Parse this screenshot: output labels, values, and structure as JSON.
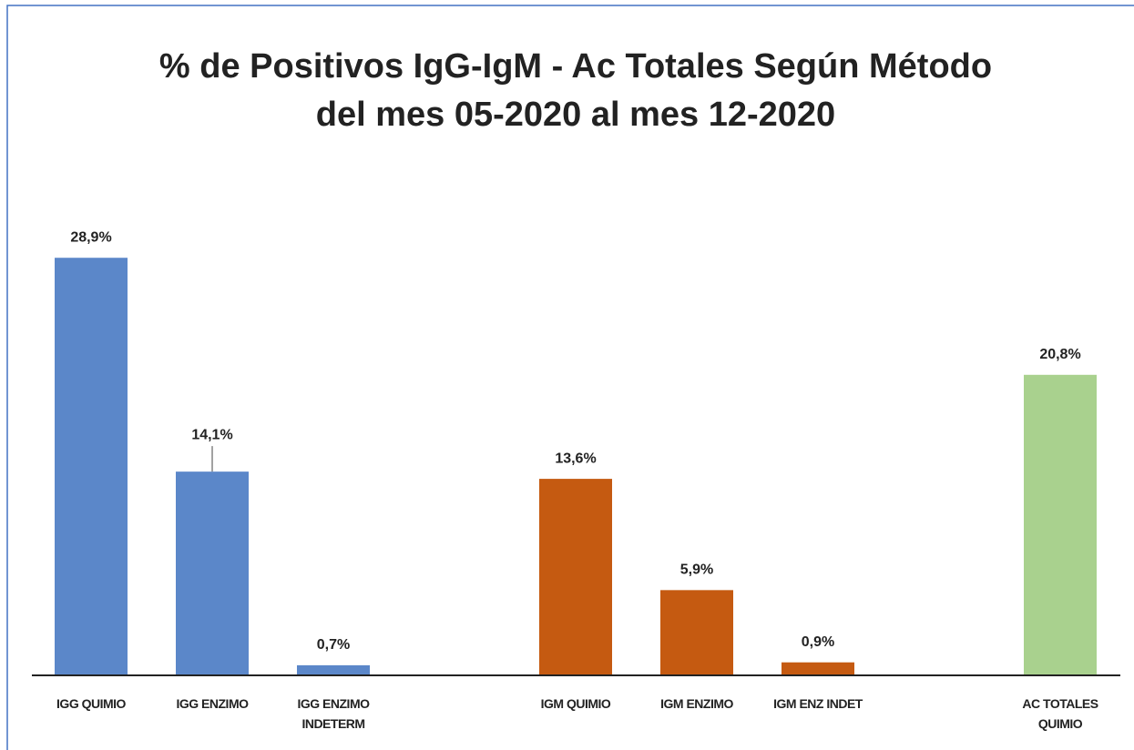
{
  "chart_data": {
    "type": "bar",
    "title": "% de Positivos IgG-IgM - Ac Totales Según Método",
    "subtitle": "del mes 05-2020 al mes 12-2020",
    "categories": [
      "IGG QUIMIO",
      "IGG ENZIMO",
      "IGG ENZIMO INDETERM",
      null,
      "IGM QUIMIO",
      "IGM ENZIMO",
      "IGM ENZ INDET",
      null,
      "AC TOTALES QUIMIO"
    ],
    "values": [
      28.9,
      14.1,
      0.7,
      null,
      13.6,
      5.9,
      0.9,
      null,
      20.8
    ],
    "value_labels": [
      "28,9%",
      "14,1%",
      "0,7%",
      null,
      "13,6%",
      "5,9%",
      "0,9%",
      null,
      "20,8%"
    ],
    "colors": [
      "#5b87c9",
      "#5b87c9",
      "#5b87c9",
      null,
      "#c55a11",
      "#c55a11",
      "#c55a11",
      null,
      "#a9d18e"
    ],
    "ylim": [
      0,
      32
    ]
  }
}
